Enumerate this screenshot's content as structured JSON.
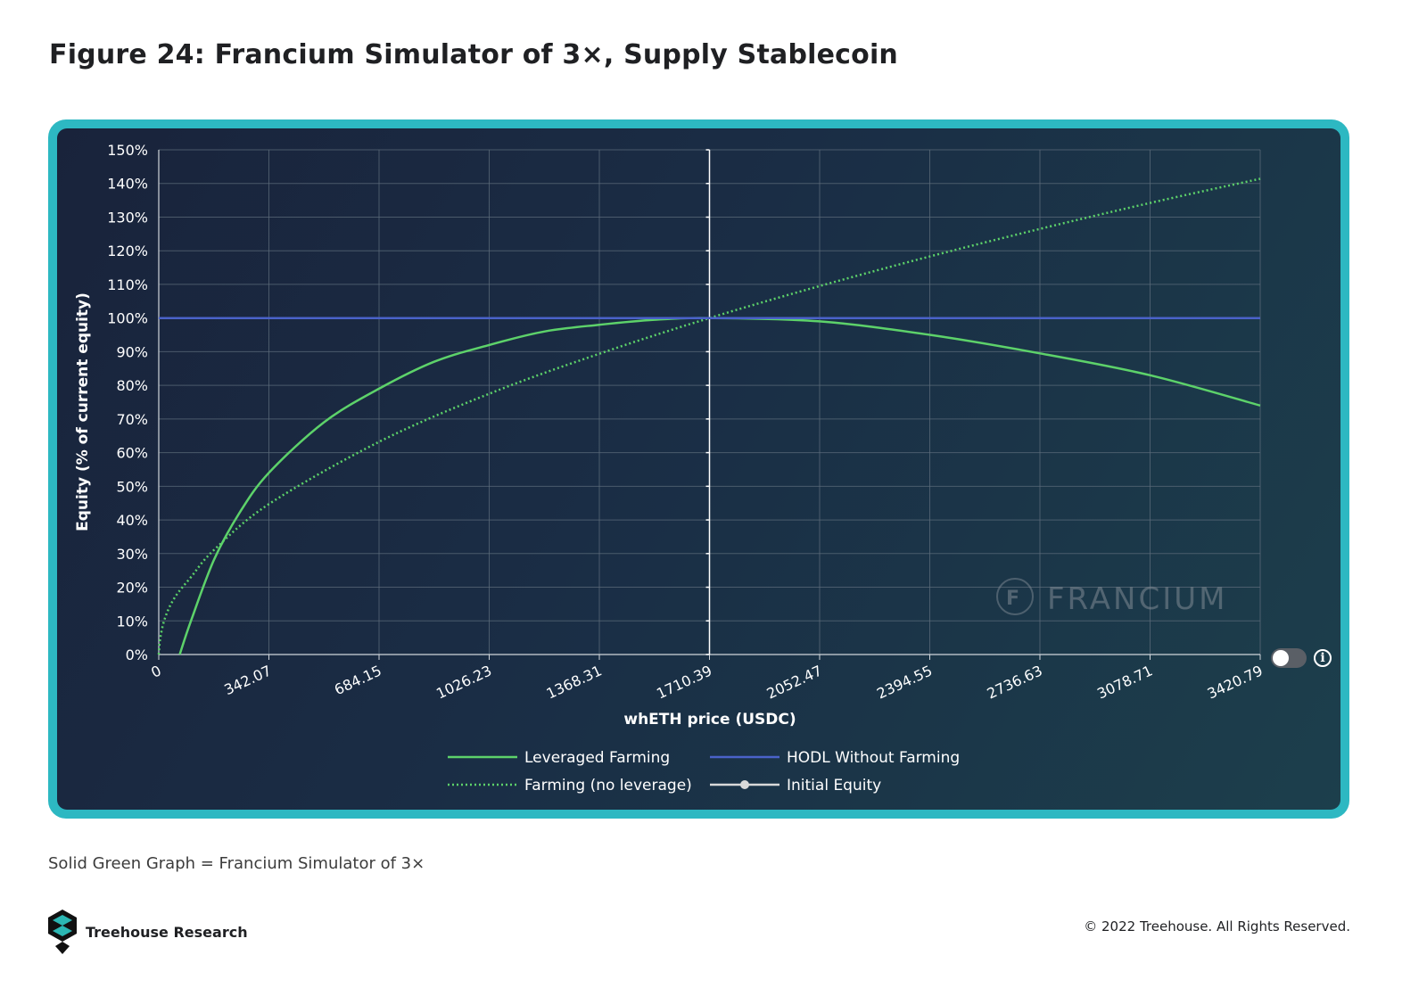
{
  "page": {
    "title": "Figure 24: Francium Simulator of 3×, Supply Stablecoin",
    "caption": "Solid Green Graph = Francium Simulator of 3×",
    "brand": "Treehouse Research",
    "copyright": "© 2022 Treehouse. All Rights Reserved.",
    "watermark": "FRANCIUM"
  },
  "colors": {
    "frame": "#2db8c2",
    "leveraged": "#5dd26a",
    "farming": "#5dd26a",
    "hodl": "#4a62c9",
    "initial": "#d9d9d9"
  },
  "icons": {
    "toggle": "toggle-switch-icon",
    "info": "info-icon",
    "logo": "treehouse-logo-icon"
  },
  "chart_data": {
    "type": "line",
    "title": "",
    "xlabel": "whETH price (USDC)",
    "ylabel": "Equity (% of current equity)",
    "xlim": [
      0,
      3420.79
    ],
    "ylim": [
      0,
      150
    ],
    "x_ticks": [
      "0",
      "342.07",
      "684.15",
      "1026.23",
      "1368.31",
      "1710.39",
      "2052.47",
      "2394.55",
      "2736.63",
      "3078.71",
      "3420.79"
    ],
    "y_ticks": [
      "0%",
      "10%",
      "20%",
      "30%",
      "40%",
      "50%",
      "60%",
      "70%",
      "80%",
      "90%",
      "100%",
      "110%",
      "120%",
      "130%",
      "140%",
      "150%"
    ],
    "initial_equity_price": 1710.39,
    "grid": true,
    "legend_position": "bottom",
    "legend": [
      "Leveraged Farming",
      "HODL Without Farming",
      "Farming (no leverage)",
      "Initial Equity"
    ],
    "series": [
      {
        "name": "Leveraged Farming",
        "style": "solid",
        "x": [
          65,
          100,
          171,
          250,
          342.07,
          513,
          684.15,
          855,
          1026.23,
          1197,
          1368.31,
          1539,
          1710.39,
          2052.47,
          2394.55,
          2736.63,
          3078.71,
          3420.79
        ],
        "y": [
          0,
          10,
          28,
          42,
          54,
          69,
          79,
          87,
          92,
          96,
          98,
          99.5,
          100,
          99,
          95,
          89.5,
          83,
          74
        ]
      },
      {
        "name": "Farming (no leverage)",
        "style": "dotted",
        "x": [
          0,
          5,
          20,
          50,
          100,
          171,
          342.07,
          684.15,
          1026.23,
          1368.31,
          1710.39,
          2052.47,
          2394.55,
          2736.63,
          3078.71,
          3420.79
        ],
        "y": [
          0,
          5,
          11,
          17,
          23,
          31,
          44.7,
          63.2,
          77.5,
          89.4,
          100,
          109.5,
          118.3,
          126.5,
          134.2,
          141.4
        ]
      },
      {
        "name": "HODL Without Farming",
        "style": "solid",
        "x": [
          0,
          3420.79
        ],
        "y": [
          100,
          100
        ]
      }
    ]
  }
}
